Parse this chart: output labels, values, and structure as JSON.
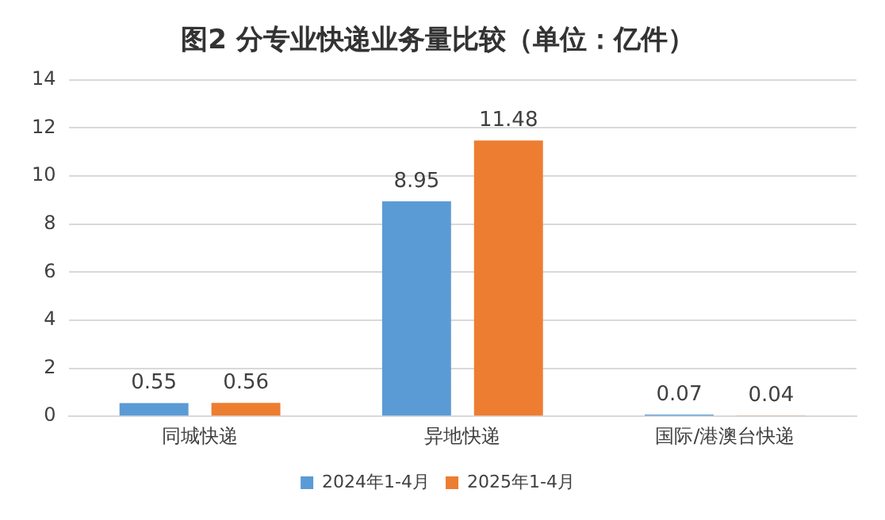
{
  "chart_data": {
    "type": "bar",
    "title": "图2 分专业快递业务量比较（单位：亿件）",
    "categories": [
      "同城快递",
      "异地快递",
      "国际/港澳台快递"
    ],
    "series": [
      {
        "name": "2024年1-4月",
        "color": "#5b9bd5",
        "values": [
          0.55,
          8.95,
          0.07
        ]
      },
      {
        "name": "2025年1-4月",
        "color": "#ed7d31",
        "values": [
          0.56,
          11.48,
          0.04
        ]
      }
    ],
    "ylim": [
      0,
      14
    ],
    "yticks": [
      0,
      2,
      4,
      6,
      8,
      10,
      12,
      14
    ],
    "grid": "y",
    "legend": "bottom",
    "data_labels": true
  }
}
